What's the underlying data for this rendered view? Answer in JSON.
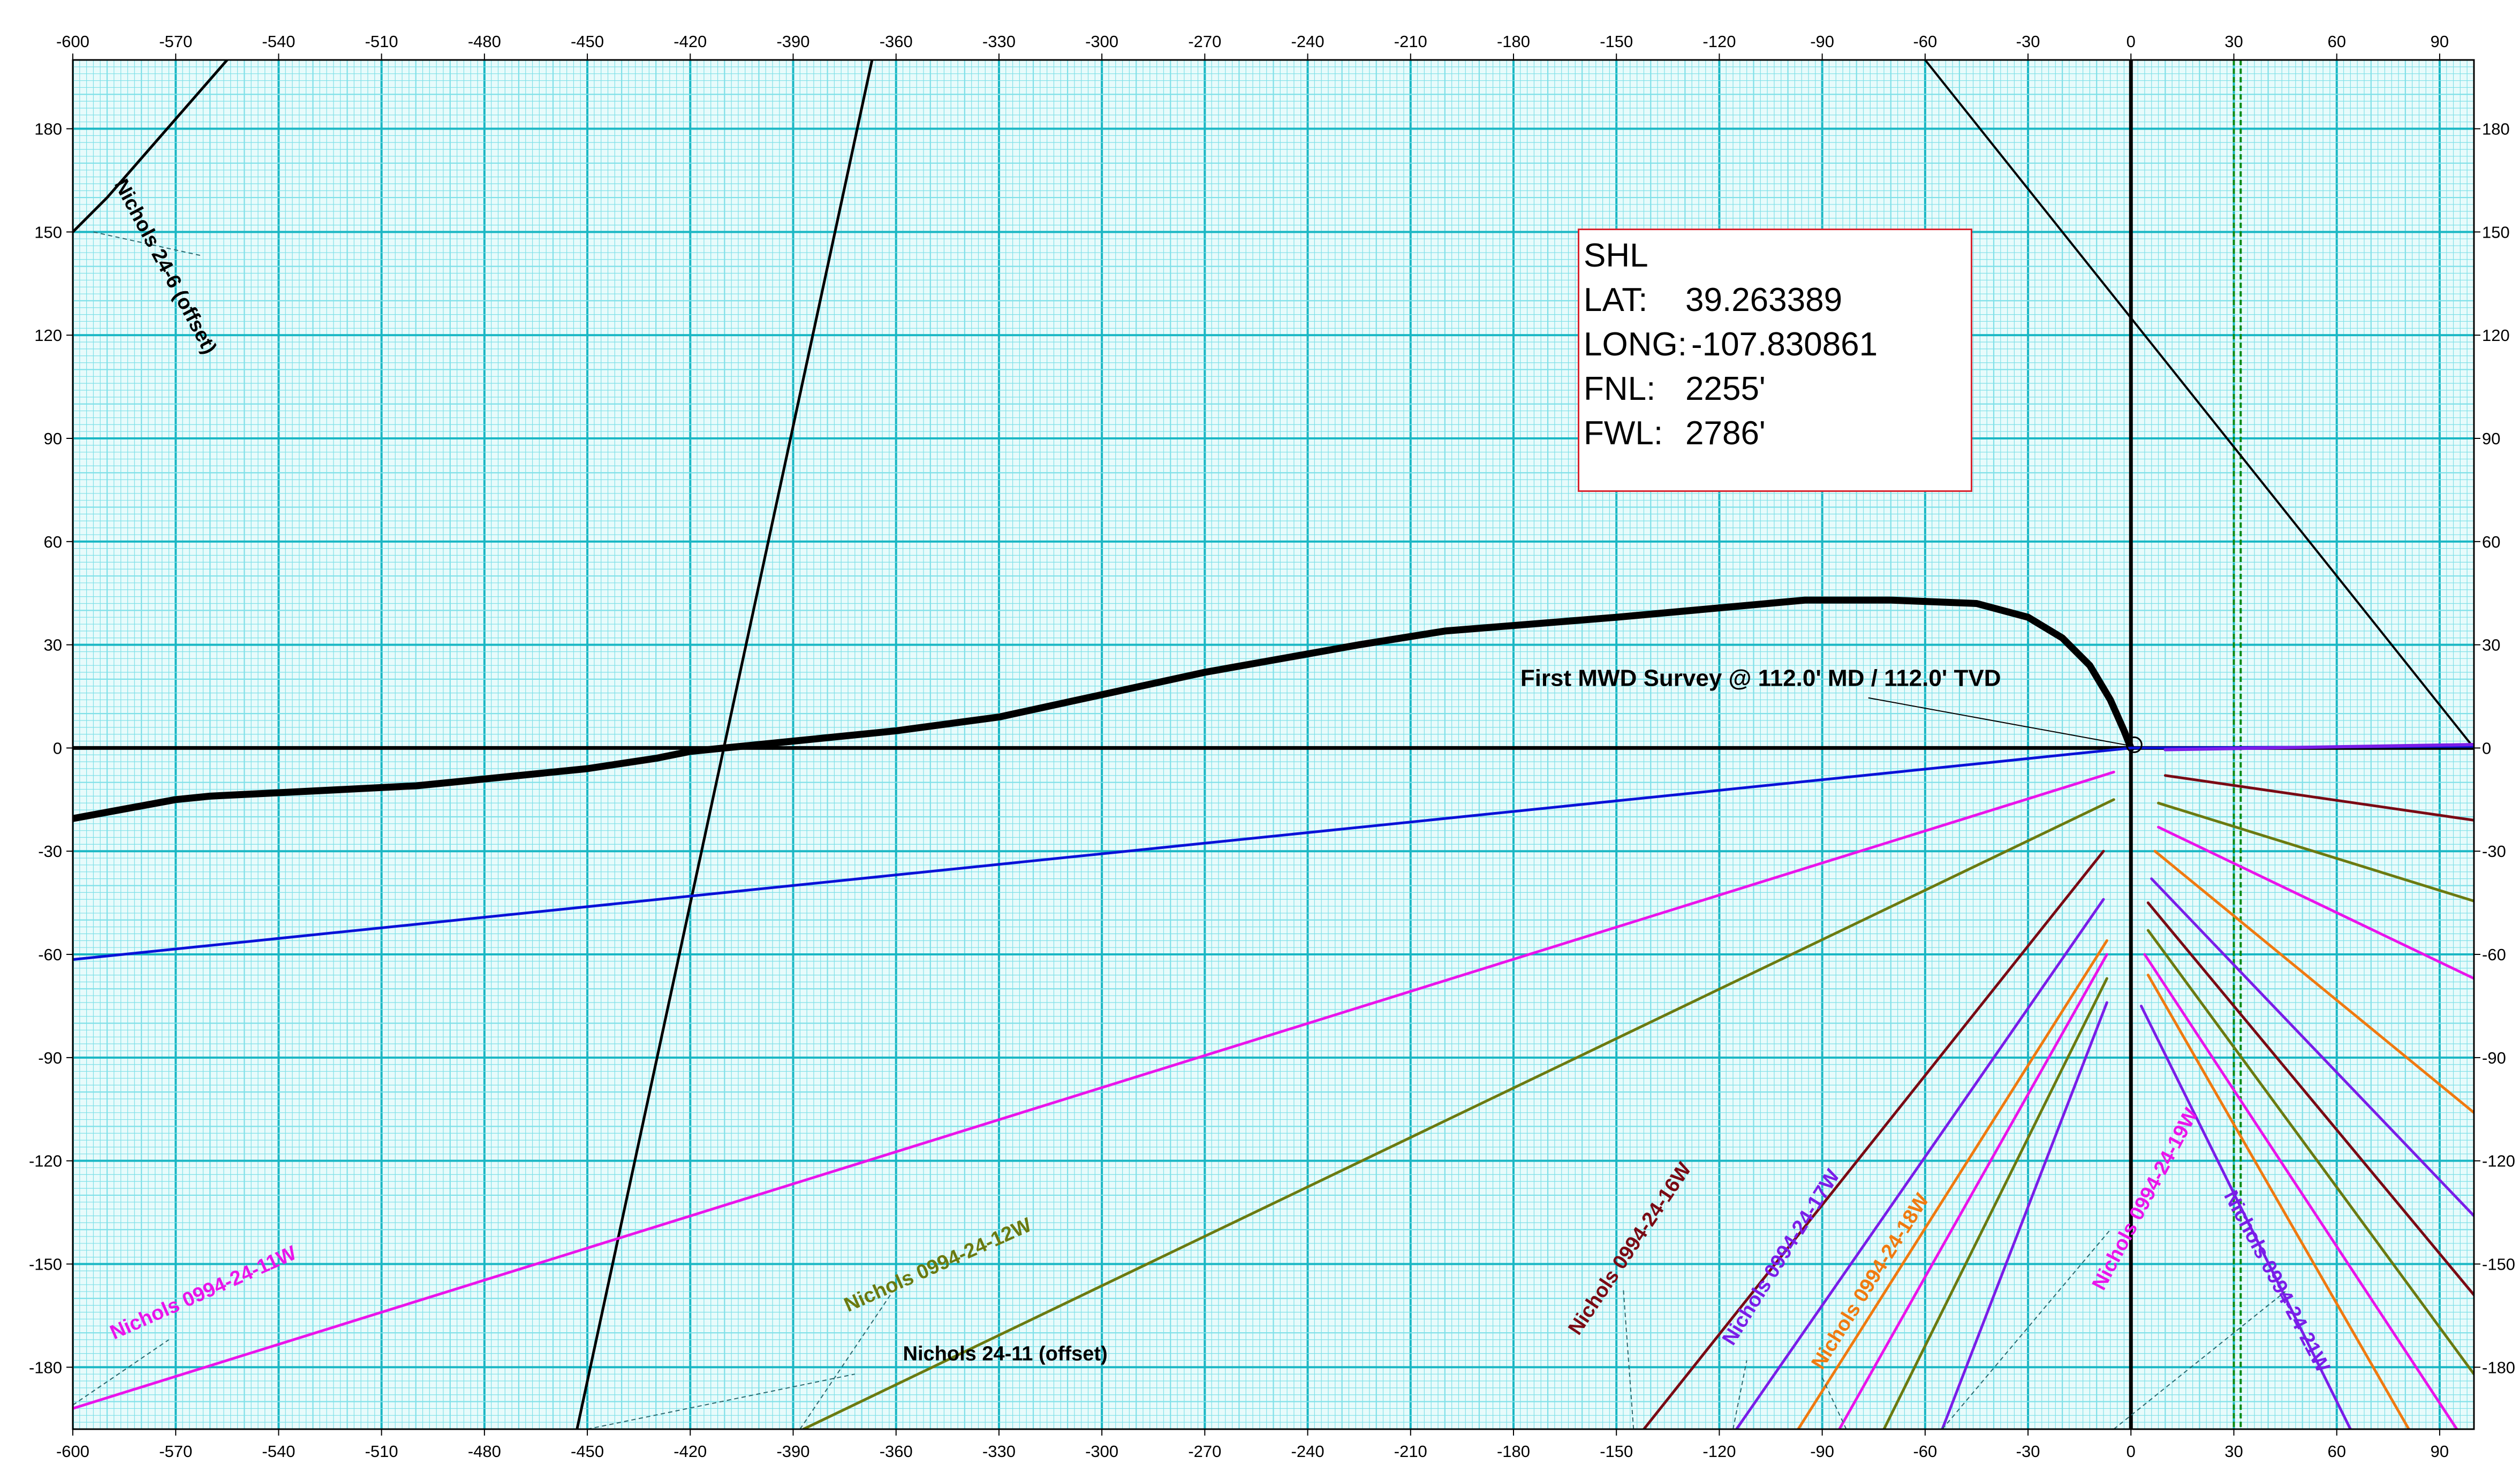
{
  "chart_data": {
    "type": "line",
    "x_ticks": [
      -600,
      -570,
      -540,
      -510,
      -480,
      -450,
      -420,
      -390,
      -360,
      -330,
      -300,
      -270,
      -240,
      -210,
      -180,
      -150,
      -120,
      -90,
      -60,
      -30,
      0,
      30,
      60,
      90
    ],
    "y_ticks": [
      180,
      150,
      120,
      90,
      60,
      30,
      0,
      -30,
      -60,
      -90,
      -120,
      -150,
      -180
    ],
    "xlim": [
      -600,
      100
    ],
    "ylim": [
      -198,
      200
    ],
    "grid": true,
    "colors": {
      "background": "#e8fbfb",
      "minor_grid": "#7fe0e8",
      "major_grid": "#1ab7c4",
      "actual_path": "#000000"
    },
    "series": [
      {
        "color": "#000000",
        "width": 13,
        "points": [
          [
            0,
            0
          ],
          [
            -2,
            5
          ],
          [
            -6,
            14
          ],
          [
            -12,
            24
          ],
          [
            -20,
            32
          ],
          [
            -30,
            38
          ],
          [
            -45,
            42
          ],
          [
            -70,
            43
          ],
          [
            -95,
            43
          ],
          [
            -150,
            38
          ],
          [
            -200,
            34
          ],
          [
            -225,
            30
          ],
          [
            -270,
            22
          ],
          [
            -330,
            9
          ],
          [
            -360,
            5
          ],
          [
            -390,
            2
          ],
          [
            -410,
            0
          ],
          [
            -420,
            -1
          ],
          [
            -430,
            -3
          ],
          [
            -450,
            -6
          ],
          [
            -480,
            -9
          ],
          [
            -500,
            -11
          ],
          [
            -540,
            -13
          ],
          [
            -560,
            -14
          ],
          [
            -570,
            -15
          ],
          [
            -600,
            -20.5
          ]
        ]
      },
      {
        "color": "#000000",
        "width": 5,
        "points": [
          [
            -600,
            150
          ],
          [
            -590,
            160
          ],
          [
            -555,
            200
          ]
        ]
      },
      {
        "color": "#000000",
        "width": 5,
        "points": [
          [
            -453,
            -198
          ],
          [
            -367,
            200
          ]
        ]
      },
      {
        "color": "#000000",
        "width": 4,
        "points": [
          [
            -60,
            200
          ],
          [
            100,
            0
          ]
        ]
      },
      {
        "color": "#0a12d8",
        "width": 5,
        "points": [
          [
            -600,
            -61.5
          ],
          [
            0,
            0
          ]
        ]
      },
      {
        "color": "#0a12d8",
        "width": 5,
        "points": [
          [
            0,
            0
          ],
          [
            100,
            0.5
          ]
        ]
      },
      {
        "color": "#7a1de8",
        "width": 6,
        "points": [
          [
            10,
            -0.5
          ],
          [
            100,
            1
          ]
        ]
      },
      {
        "color": "#ea14ea",
        "width": 5,
        "points": [
          [
            -600,
            -192
          ],
          [
            -5,
            -7
          ]
        ]
      },
      {
        "color": "#6b7a10",
        "width": 5,
        "points": [
          [
            -387,
            -198
          ],
          [
            -5,
            -15
          ]
        ]
      },
      {
        "color": "#7a0a14",
        "width": 5,
        "points": [
          [
            -142,
            -198
          ],
          [
            -8,
            -30
          ]
        ]
      },
      {
        "color": "#7a1de8",
        "width": 5,
        "points": [
          [
            -115,
            -198
          ],
          [
            -8,
            -44
          ]
        ]
      },
      {
        "color": "#f07a10",
        "width": 5,
        "points": [
          [
            -97,
            -198
          ],
          [
            -7,
            -56
          ]
        ]
      },
      {
        "color": "#ea14ea",
        "width": 5,
        "points": [
          [
            -85,
            -198
          ],
          [
            -7,
            -60
          ]
        ]
      },
      {
        "color": "#6b7a10",
        "width": 5,
        "points": [
          [
            -72,
            -198
          ],
          [
            -7,
            -67
          ]
        ]
      },
      {
        "color": "#7a1de8",
        "width": 5,
        "points": [
          [
            -55,
            -198
          ],
          [
            -7,
            -74
          ]
        ]
      },
      {
        "color": "#7a0a14",
        "width": 5,
        "points": [
          [
            10,
            -8
          ],
          [
            100,
            -21
          ]
        ]
      },
      {
        "color": "#6b7a10",
        "width": 5,
        "points": [
          [
            8,
            -16
          ],
          [
            100,
            -44.5
          ]
        ]
      },
      {
        "color": "#ea14ea",
        "width": 5,
        "points": [
          [
            8,
            -23
          ],
          [
            100,
            -67
          ]
        ]
      },
      {
        "color": "#f07a10",
        "width": 5,
        "points": [
          [
            7,
            -30
          ],
          [
            100,
            -106
          ]
        ]
      },
      {
        "color": "#7a1de8",
        "width": 5,
        "points": [
          [
            6,
            -38
          ],
          [
            100,
            -136
          ]
        ]
      },
      {
        "color": "#7a0a14",
        "width": 5,
        "points": [
          [
            5,
            -45
          ],
          [
            100,
            -159
          ]
        ]
      },
      {
        "color": "#6b7a10",
        "width": 5,
        "points": [
          [
            5,
            -53
          ],
          [
            100,
            -182
          ]
        ]
      },
      {
        "color": "#ea14ea",
        "width": 5,
        "points": [
          [
            4,
            -60
          ],
          [
            95,
            -198
          ]
        ]
      },
      {
        "color": "#f07a10",
        "width": 5,
        "points": [
          [
            5,
            -66
          ],
          [
            81,
            -198
          ]
        ]
      },
      {
        "color": "#7a1de8",
        "width": 5,
        "points": [
          [
            3,
            -75
          ],
          [
            64,
            -198
          ]
        ]
      }
    ],
    "vlines": [
      {
        "x": 0,
        "color": "#000000",
        "width": 7,
        "dash": ""
      },
      {
        "x": 30,
        "color": "#0a8a12",
        "width": 4,
        "dash": "10,6"
      },
      {
        "x": 32,
        "color": "#0a8a12",
        "width": 4,
        "dash": "10,6"
      }
    ],
    "hlines": [
      {
        "y": 0,
        "color": "#000000",
        "width": 7
      }
    ],
    "well_labels": [
      {
        "text": "Nichols 24-6 (offset)",
        "x": -588,
        "y": 164,
        "angle": 62,
        "color": "#000000"
      },
      {
        "text": "Nichols 0994-24-11W",
        "x": -588,
        "y": -172,
        "angle": -24,
        "color": "#ea14ea"
      },
      {
        "text": "Nichols 0994-24-12W",
        "x": -374,
        "y": -164,
        "angle": -24,
        "color": "#6b7a10"
      },
      {
        "text": "Nichols 24-11 (offset)",
        "x": -358,
        "y": -178,
        "angle": 0,
        "color": "#000000"
      },
      {
        "text": "Nichols 0994-24-16W",
        "x": -161,
        "y": -171,
        "angle": -56,
        "color": "#7a0a14"
      },
      {
        "text": "Nichols 0994-24-17W",
        "x": -116,
        "y": -174,
        "angle": -58,
        "color": "#7a1de8"
      },
      {
        "text": "Nichols 0994-24-18W",
        "x": -90,
        "y": -181,
        "angle": -58,
        "color": "#f07a10"
      },
      {
        "text": "Nichols 0994-24-19W",
        "x": -8,
        "y": -158,
        "angle": -62,
        "color": "#ea14ea"
      },
      {
        "text": "Nichols 0994-24-21W",
        "x": 27,
        "y": -130,
        "angle": 62,
        "color": "#7a1de8"
      }
    ],
    "leaders": [
      {
        "from": [
          -594,
          150
        ],
        "to": [
          -562,
          143
        ]
      },
      {
        "from": [
          -600,
          -191
        ],
        "to": [
          -572,
          -172
        ]
      },
      {
        "from": [
          -388,
          -198
        ],
        "to": [
          -361,
          -158
        ]
      },
      {
        "from": [
          -450,
          -198
        ],
        "to": [
          -372,
          -182
        ]
      },
      {
        "from": [
          -145,
          -198
        ],
        "to": [
          -148,
          -157
        ]
      },
      {
        "from": [
          -116,
          -198
        ],
        "to": [
          -112,
          -178
        ]
      },
      {
        "from": [
          -83,
          -198
        ],
        "to": [
          -90,
          -183
        ]
      },
      {
        "from": [
          -55,
          -198
        ],
        "to": [
          -6,
          -140
        ]
      },
      {
        "from": [
          -5,
          -198
        ],
        "to": [
          45,
          -158
        ]
      }
    ],
    "annotation": {
      "text": "First MWD Survey @ 112.0' MD / 112.0' TVD",
      "x": -178,
      "y": 18,
      "arrow_to": [
        0,
        0
      ]
    }
  },
  "shl_box": {
    "title": "SHL",
    "lat_label": "LAT:",
    "lat_value": "39.263389",
    "long_label": "LONG:",
    "long_value": "-107.830861",
    "fnl_label": "FNL:",
    "fnl_value": "2255'",
    "fwl_label": "FWL:",
    "fwl_value": "2786'"
  }
}
